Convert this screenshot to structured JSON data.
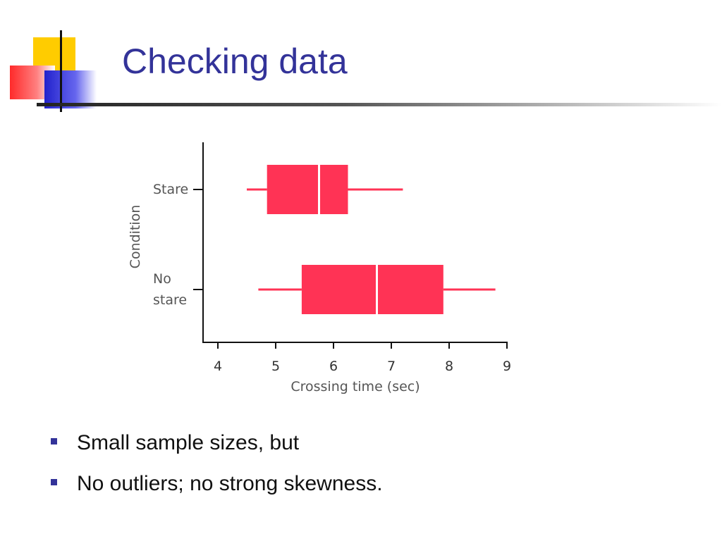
{
  "slide": {
    "title": "Checking data",
    "bullets": [
      "Small sample sizes, but",
      "No outliers; no strong skewness."
    ]
  },
  "colors": {
    "title": "#333399",
    "box": "#ff3355",
    "axis": "#111111",
    "bullet": "#333399"
  },
  "chart_data": {
    "type": "box",
    "orientation": "horizontal",
    "title": "",
    "xlabel": "Crossing time (sec)",
    "ylabel": "Condition",
    "xlim": [
      3.8,
      9
    ],
    "xticks": [
      "4",
      "5",
      "6",
      "7",
      "8",
      "9"
    ],
    "grid": false,
    "series": [
      {
        "name": "Stare",
        "label_lines": [
          "Stare"
        ],
        "min": 4.5,
        "q1": 4.85,
        "median": 5.75,
        "q3": 6.25,
        "max": 7.2
      },
      {
        "name": "No stare",
        "label_lines": [
          "No",
          "stare"
        ],
        "min": 4.7,
        "q1": 5.45,
        "median": 6.75,
        "q3": 7.9,
        "max": 8.8
      }
    ]
  }
}
